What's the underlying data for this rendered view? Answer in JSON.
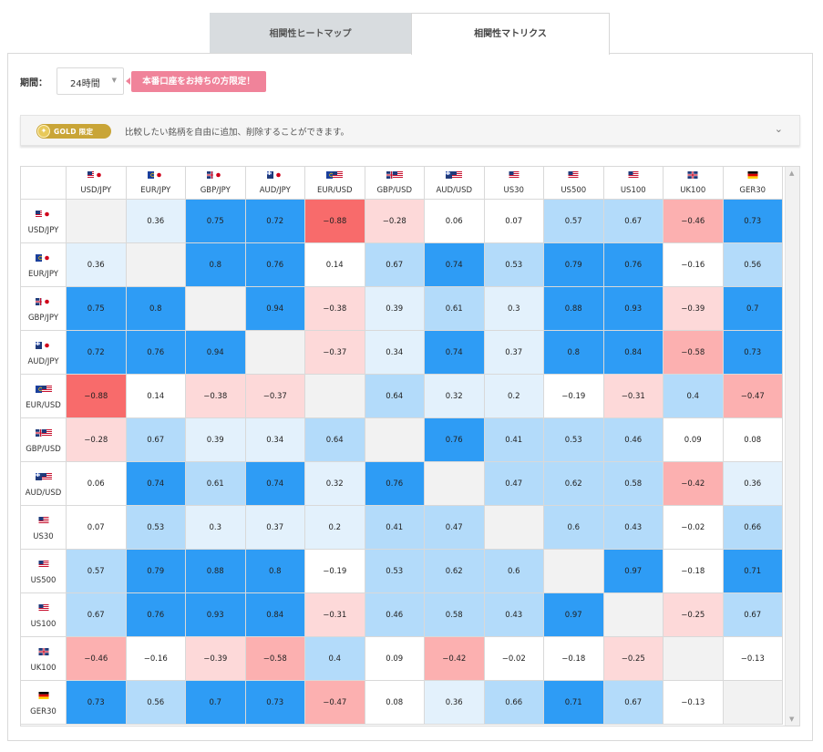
{
  "tabs": [
    {
      "label": "相関性ヒートマップ",
      "active": false
    },
    {
      "label": "相関性マトリクス",
      "active": true
    }
  ],
  "period": {
    "label": "期間：",
    "selected": "24時間"
  },
  "promo": {
    "label": "本番口座をお持ちの方限定！"
  },
  "gold_bar": {
    "badge": "GOLD 限定",
    "description": "比較したい銘柄を自由に追加、削除することができます。"
  },
  "matrix": {
    "symbols": [
      {
        "name": "USD/JPY",
        "flags": [
          "us",
          "jp"
        ]
      },
      {
        "name": "EUR/JPY",
        "flags": [
          "eu",
          "jp"
        ]
      },
      {
        "name": "GBP/JPY",
        "flags": [
          "gb",
          "jp"
        ]
      },
      {
        "name": "AUD/JPY",
        "flags": [
          "au",
          "jp"
        ]
      },
      {
        "name": "EUR/USD",
        "flags": [
          "eu",
          "us"
        ]
      },
      {
        "name": "GBP/USD",
        "flags": [
          "gb",
          "us"
        ]
      },
      {
        "name": "AUD/USD",
        "flags": [
          "au",
          "us"
        ]
      },
      {
        "name": "US30",
        "flags": [
          "us"
        ]
      },
      {
        "name": "US500",
        "flags": [
          "us"
        ]
      },
      {
        "name": "US100",
        "flags": [
          "us"
        ]
      },
      {
        "name": "UK100",
        "flags": [
          "gb"
        ]
      },
      {
        "name": "GER30",
        "flags": [
          "de"
        ]
      }
    ],
    "values": [
      [
        null,
        "0.36",
        "0.75",
        "0.72",
        "-0.88",
        "-0.28",
        "0.06",
        "0.07",
        "0.57",
        "0.67",
        "-0.46",
        "0.73"
      ],
      [
        "0.36",
        null,
        "0.8",
        "0.76",
        "0.14",
        "0.67",
        "0.74",
        "0.53",
        "0.79",
        "0.76",
        "-0.16",
        "0.56"
      ],
      [
        "0.75",
        "0.8",
        null,
        "0.94",
        "-0.38",
        "0.39",
        "0.61",
        "0.3",
        "0.88",
        "0.93",
        "-0.39",
        "0.7"
      ],
      [
        "0.72",
        "0.76",
        "0.94",
        null,
        "-0.37",
        "0.34",
        "0.74",
        "0.37",
        "0.8",
        "0.84",
        "-0.58",
        "0.73"
      ],
      [
        "-0.88",
        "0.14",
        "-0.38",
        "-0.37",
        null,
        "0.64",
        "0.32",
        "0.2",
        "-0.19",
        "-0.31",
        "0.4",
        "-0.47"
      ],
      [
        "-0.28",
        "0.67",
        "0.39",
        "0.34",
        "0.64",
        null,
        "0.76",
        "0.41",
        "0.53",
        "0.46",
        "0.09",
        "0.08"
      ],
      [
        "0.06",
        "0.74",
        "0.61",
        "0.74",
        "0.32",
        "0.76",
        null,
        "0.47",
        "0.62",
        "0.58",
        "-0.42",
        "0.36"
      ],
      [
        "0.07",
        "0.53",
        "0.3",
        "0.37",
        "0.2",
        "0.41",
        "0.47",
        null,
        "0.6",
        "0.43",
        "-0.02",
        "0.66"
      ],
      [
        "0.57",
        "0.79",
        "0.88",
        "0.8",
        "-0.19",
        "0.53",
        "0.62",
        "0.6",
        null,
        "0.97",
        "-0.18",
        "0.71"
      ],
      [
        "0.67",
        "0.76",
        "0.93",
        "0.84",
        "-0.31",
        "0.46",
        "0.58",
        "0.43",
        "0.97",
        null,
        "-0.25",
        "0.67"
      ],
      [
        "-0.46",
        "-0.16",
        "-0.39",
        "-0.58",
        "0.4",
        "0.09",
        "-0.42",
        "-0.02",
        "-0.18",
        "-0.25",
        null,
        "-0.13"
      ],
      [
        "0.73",
        "0.56",
        "0.7",
        "0.73",
        "-0.47",
        "0.08",
        "0.36",
        "0.66",
        "0.71",
        "0.67",
        "-0.13",
        null
      ]
    ]
  },
  "colors": {
    "strong_pos": "#2e9cf5",
    "mid_pos": "#b3dbfa",
    "weak_pos": "#e3f1fc",
    "neutral": "#ffffff",
    "weak_neg": "#fdd9d9",
    "mid_neg": "#fcb0b0",
    "strong_neg": "#f86b6b",
    "diagonal": "#f2f2f2"
  }
}
